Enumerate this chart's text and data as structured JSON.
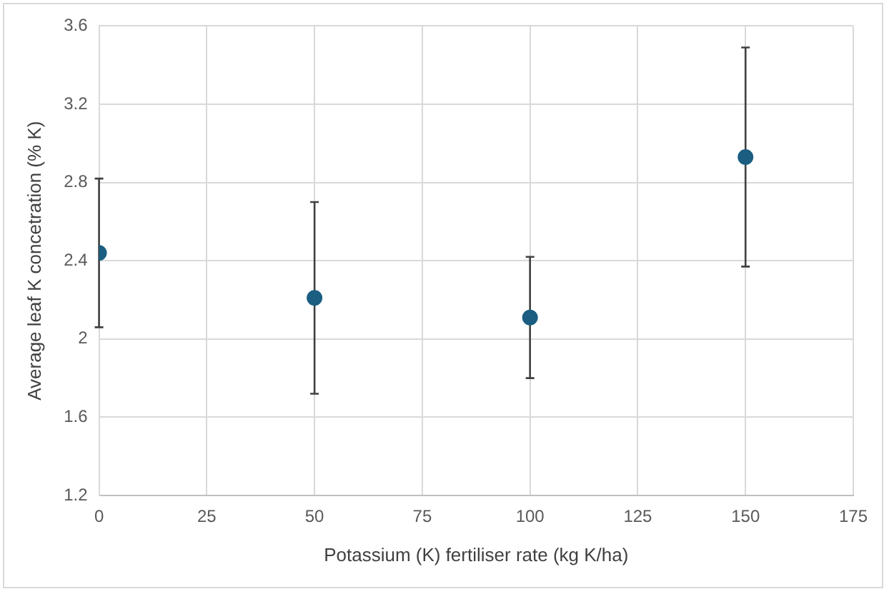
{
  "chart_data": {
    "type": "scatter",
    "xlabel": "Potassium (K) fertiliser rate (kg K/ha)",
    "ylabel": "Average leaf K concetration (% K)",
    "x": [
      0,
      50,
      100,
      150
    ],
    "values": [
      2.44,
      2.21,
      2.11,
      2.93
    ],
    "errors": [
      [
        2.06,
        2.82
      ],
      [
        1.72,
        2.7
      ],
      [
        1.8,
        2.42
      ],
      [
        2.37,
        3.49
      ]
    ],
    "color": "#1b5e82",
    "marker": "circle",
    "xlim": [
      0,
      175
    ],
    "xticks": [
      0,
      25,
      50,
      75,
      100,
      125,
      150,
      175
    ],
    "ylim": [
      1.2,
      3.6
    ],
    "yticks": [
      1.2,
      1.6,
      2,
      2.4,
      2.8,
      3.2,
      3.6
    ],
    "grid": true,
    "legend": false
  }
}
